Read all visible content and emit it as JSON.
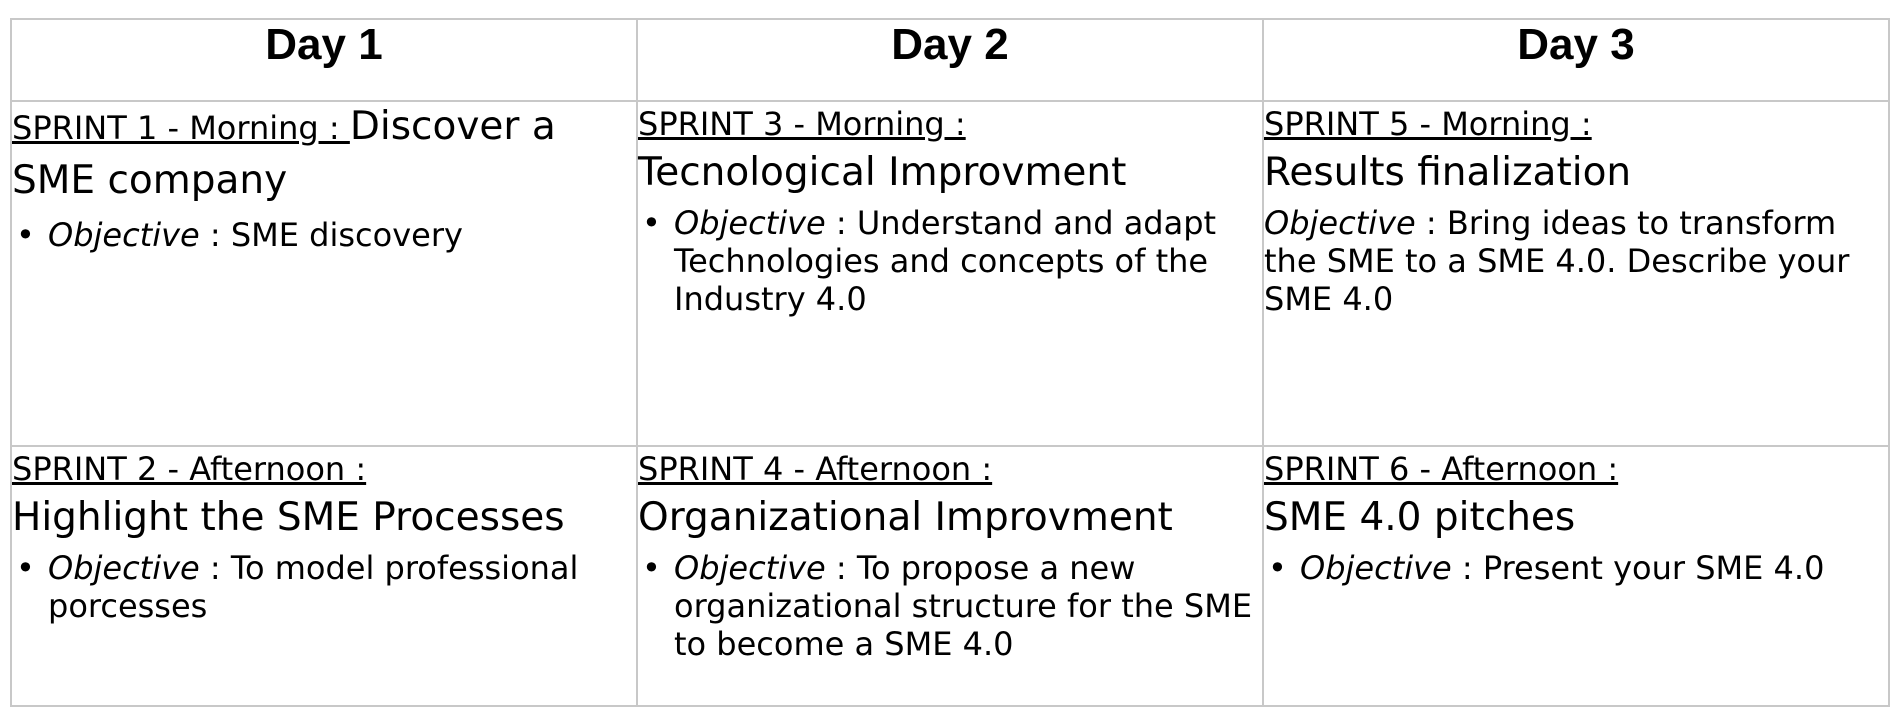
{
  "days": [
    "Day 1",
    "Day 2",
    "Day 3"
  ],
  "morning": [
    {
      "sprint": "SPRINT 1 - Morning : ",
      "title": "Discover a SME company",
      "objective_label": "Objective",
      "objective_text": " : SME discovery",
      "bullet": "•"
    },
    {
      "sprint": "SPRINT 3 - Morning :",
      "title": "Tecnological Improvment",
      "objective_label": "Objective",
      "objective_text": " : Understand and adapt Technologies and concepts of the Industry 4.0",
      "bullet": "•"
    },
    {
      "sprint": "SPRINT 5 - Morning :",
      "title": "Results finalization",
      "objective_label": "Objective",
      "objective_text": " : Bring ideas to transform the SME to a SME 4.0. Describe your SME 4.0"
    }
  ],
  "afternoon": [
    {
      "sprint": "SPRINT 2 - Afternoon :",
      "title": "Highlight the SME Processes",
      "objective_label": "Objective",
      "objective_text": " : To model professional porcesses",
      "bullet": "•"
    },
    {
      "sprint": "SPRINT 4 - Afternoon :",
      "title": "Organizational Improvment",
      "objective_label": "Objective",
      "objective_text": " : To propose a new organizational structure for the SME to become a SME 4.0",
      "bullet": "•"
    },
    {
      "sprint": "SPRINT 6 - Afternoon :",
      "title": "SME 4.0 pitches",
      "objective_label": "Objective",
      "objective_text": " : Present your SME 4.0",
      "bullet": "•"
    }
  ]
}
